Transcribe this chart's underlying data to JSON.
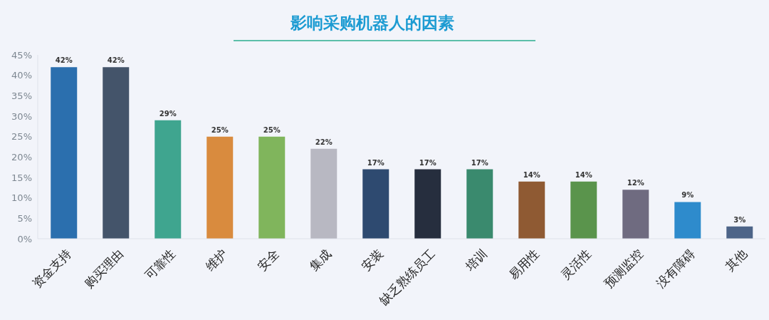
{
  "chart_data": {
    "type": "bar",
    "title": "影响采购机器人的因素",
    "categories": [
      "资金支持",
      "购买理由",
      "可靠性",
      "维护",
      "安全",
      "集成",
      "安装",
      "缺乏熟练员工",
      "培训",
      "易用性",
      "灵活性",
      "预测监控",
      "没有障碍",
      "其他"
    ],
    "values": [
      42,
      42,
      29,
      25,
      25,
      22,
      17,
      17,
      17,
      14,
      14,
      12,
      9,
      3
    ],
    "colors": [
      "#2b6fae",
      "#44546a",
      "#3fa58f",
      "#d98b3e",
      "#80b55c",
      "#b8b8c2",
      "#2e4a70",
      "#262e3e",
      "#3a8a6e",
      "#8f5a33",
      "#5a944c",
      "#6f6b80",
      "#2e8bcc",
      "#4d6488"
    ],
    "value_labels": [
      "42%",
      "42%",
      "29%",
      "25%",
      "25%",
      "22%",
      "17%",
      "17%",
      "17%",
      "14%",
      "14%",
      "12%",
      "9%",
      "3%"
    ],
    "ylim": [
      0,
      45
    ],
    "yticks": [
      {
        "value": 0,
        "label": "0%"
      },
      {
        "value": 5,
        "label": "5%"
      },
      {
        "value": 10,
        "label": "10%"
      },
      {
        "value": 15,
        "label": "15%"
      },
      {
        "value": 20,
        "label": "20%"
      },
      {
        "value": 25,
        "label": "25%"
      },
      {
        "value": 30,
        "label": "30%"
      },
      {
        "value": 35,
        "label": "35%"
      },
      {
        "value": 40,
        "label": "40%"
      },
      {
        "value": 45,
        "label": "45%"
      }
    ]
  }
}
